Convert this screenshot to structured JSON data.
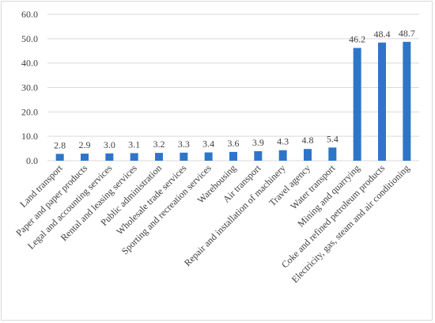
{
  "chart_data": {
    "type": "bar",
    "categories": [
      "Land transport",
      "Paper and paper products",
      "Legal and accounting services",
      "Rental and leasing services",
      "Public administration",
      "Wholesale trade services",
      "Sporting and recreation services",
      "Warehousing",
      "Air transport",
      "Repair and installation of machinery",
      "Travel agency",
      "Water transport",
      "Mining and quarrying",
      "Coke and refined petroleum products",
      "Electricity, gas, steam and air conditioning"
    ],
    "values": [
      2.8,
      2.9,
      3.0,
      3.1,
      3.2,
      3.3,
      3.4,
      3.6,
      3.9,
      4.3,
      4.8,
      5.4,
      46.2,
      48.4,
      48.7
    ],
    "value_labels": [
      "2.8",
      "2.9",
      "3.0",
      "3.1",
      "3.2",
      "3.3",
      "3.4",
      "3.6",
      "3.9",
      "4.3",
      "4.8",
      "5.4",
      "46.2",
      "48.4",
      "48.7"
    ],
    "y_ticks": [
      "0.0",
      "10.0",
      "20.0",
      "30.0",
      "40.0",
      "50.0",
      "60.0"
    ],
    "ylim": [
      0,
      60
    ],
    "grid": true,
    "legend": "none",
    "bar_color": "#2e75c8",
    "title": "",
    "xlabel": "",
    "ylabel": ""
  }
}
